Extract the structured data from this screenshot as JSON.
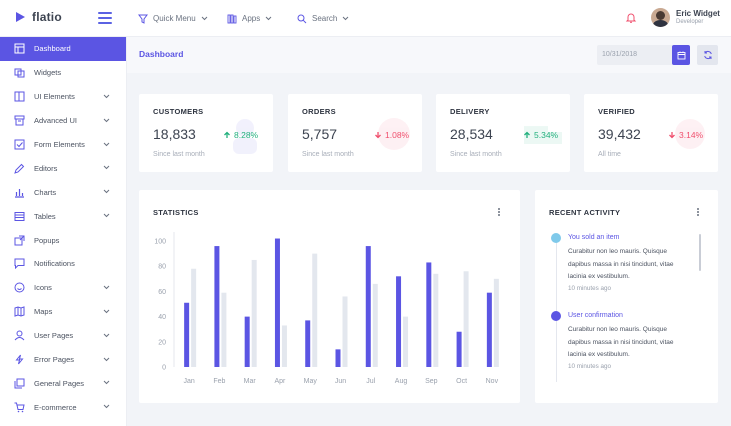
{
  "brand": {
    "name": "flatio"
  },
  "topnav": {
    "quick_menu": "Quick Menu",
    "apps": "Apps",
    "search": "Search"
  },
  "user": {
    "name": "Eric Widget",
    "role": "Developer"
  },
  "sidebar": {
    "items": [
      {
        "label": "Dashboard",
        "icon": "dashboard-icon",
        "has_chevron": false,
        "active": true
      },
      {
        "label": "Widgets",
        "icon": "widgets-icon",
        "has_chevron": false
      },
      {
        "label": "UI Elements",
        "icon": "book-icon",
        "has_chevron": true
      },
      {
        "label": "Advanced UI",
        "icon": "archive-icon",
        "has_chevron": true
      },
      {
        "label": "Form Elements",
        "icon": "checkbox-icon",
        "has_chevron": true
      },
      {
        "label": "Editors",
        "icon": "edit-icon",
        "has_chevron": true
      },
      {
        "label": "Charts",
        "icon": "bar-chart-icon",
        "has_chevron": true
      },
      {
        "label": "Tables",
        "icon": "table-icon",
        "has_chevron": true
      },
      {
        "label": "Popups",
        "icon": "popup-icon",
        "has_chevron": false
      },
      {
        "label": "Notifications",
        "icon": "message-icon",
        "has_chevron": false
      },
      {
        "label": "Icons",
        "icon": "smile-icon",
        "has_chevron": true
      },
      {
        "label": "Maps",
        "icon": "map-icon",
        "has_chevron": true
      },
      {
        "label": "User Pages",
        "icon": "user-icon",
        "has_chevron": true
      },
      {
        "label": "Error Pages",
        "icon": "bolt-icon",
        "has_chevron": true
      },
      {
        "label": "General Pages",
        "icon": "pages-icon",
        "has_chevron": true
      },
      {
        "label": "E-commerce",
        "icon": "cart-icon",
        "has_chevron": true
      }
    ]
  },
  "subheader": {
    "breadcrumb": "Dashboard",
    "date": "10/31/2018"
  },
  "stats": [
    {
      "title": "CUSTOMERS",
      "value": "18,833",
      "change": "8.28%",
      "direction": "up",
      "sub": "Since last month"
    },
    {
      "title": "ORDERS",
      "value": "5,757",
      "change": "1.08%",
      "direction": "down",
      "sub": "Since last month"
    },
    {
      "title": "DELIVERY",
      "value": "28,534",
      "change": "5.34%",
      "direction": "up",
      "sub": "Since last month"
    },
    {
      "title": "VERIFIED",
      "value": "39,432",
      "change": "3.14%",
      "direction": "down",
      "sub": "All time"
    }
  ],
  "statistics": {
    "title": "STATISTICS"
  },
  "chart_data": {
    "type": "bar",
    "categories": [
      "Jan",
      "Feb",
      "Mar",
      "Apr",
      "May",
      "Jun",
      "Jul",
      "Aug",
      "Sep",
      "Oct",
      "Nov"
    ],
    "series": [
      {
        "values": [
          51,
          96,
          40,
          102,
          37,
          14,
          96,
          72,
          83,
          28,
          59
        ]
      },
      {
        "values": [
          78,
          59,
          85,
          33,
          90,
          56,
          66,
          40,
          74,
          76,
          70
        ]
      }
    ],
    "yticks": [
      0,
      20,
      40,
      60,
      80,
      100
    ],
    "ylim": [
      0,
      104
    ],
    "colors": [
      "#5b55e3",
      "#e3e7ee"
    ],
    "grid": false
  },
  "activity": {
    "title": "RECENT ACTIVITY",
    "items": [
      {
        "title": "You sold an item",
        "body": "Curabitur non leo mauris. Quisque dapibus massa in nisi tincidunt, vitae lacinia ex vestibulum.",
        "time": "10 minutes ago",
        "dot_color": "#7fc9ea"
      },
      {
        "title": "User confirmation",
        "body": "Curabitur non leo mauris. Quisque dapibus massa in nisi tincidunt, vitae lacinia ex vestibulum.",
        "time": "10 minutes ago",
        "dot_color": "#5b55e3"
      }
    ]
  }
}
